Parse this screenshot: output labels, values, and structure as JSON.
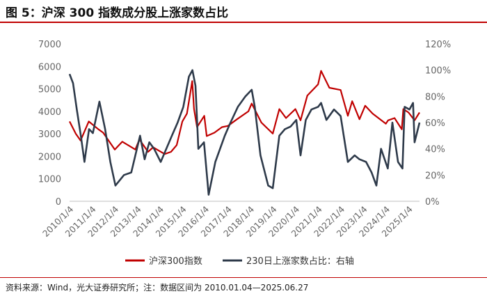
{
  "title": "图 5：沪深 300 指数成分股上涨家数占比",
  "source": "资料来源：Wind，光大证券研究所；注：数据区间为 2010.01.04—2025.06.27",
  "colors": {
    "index_line": "#c00000",
    "ratio_line": "#2e3a4a",
    "axis_text": "#666666",
    "accent": "#c00000"
  },
  "chart_data": {
    "type": "line",
    "title": "",
    "x_range": [
      "2010-01-04",
      "2025-06-27"
    ],
    "x_ticks": [
      "2010/1/4",
      "2011/1/4",
      "2012/1/4",
      "2013/1/4",
      "2014/1/4",
      "2015/1/4",
      "2016/1/4",
      "2017/1/4",
      "2018/1/4",
      "2019/1/4",
      "2020/1/4",
      "2021/1/4",
      "2022/1/4",
      "2023/1/4",
      "2024/1/4",
      "2025/1/4"
    ],
    "y_left": {
      "label": "",
      "range": [
        0,
        7000
      ],
      "ticks": [
        "0",
        "1000",
        "2000",
        "3000",
        "4000",
        "5000",
        "6000",
        "7000"
      ]
    },
    "y_right": {
      "label": "",
      "range": [
        0,
        1.2
      ],
      "ticks": [
        "0%",
        "20%",
        "40%",
        "60%",
        "80%",
        "100%",
        "120%"
      ]
    },
    "grid": false,
    "legend_position": "bottom",
    "series": [
      {
        "name": "沪深300指数",
        "axis": "left",
        "x": [
          "2010-01-04",
          "2010-04-15",
          "2010-07-01",
          "2010-11-10",
          "2011-04-15",
          "2011-07-01",
          "2012-01-05",
          "2012-05-05",
          "2012-12-01",
          "2013-02-05",
          "2013-06-25",
          "2013-09-15",
          "2014-03-20",
          "2014-07-01",
          "2014-10-01",
          "2014-12-31",
          "2015-03-15",
          "2015-06-08",
          "2015-07-08",
          "2015-08-25",
          "2015-12-20",
          "2016-01-28",
          "2016-06-01",
          "2016-10-01",
          "2017-01-04",
          "2017-06-01",
          "2017-12-01",
          "2018-01-24",
          "2018-06-30",
          "2018-12-31",
          "2019-04-15",
          "2019-08-01",
          "2019-12-31",
          "2020-03-23",
          "2020-07-10",
          "2020-12-31",
          "2021-02-18",
          "2021-07-01",
          "2021-12-31",
          "2022-04-26",
          "2022-07-05",
          "2022-10-31",
          "2023-01-31",
          "2023-06-01",
          "2023-12-31",
          "2024-02-05",
          "2024-05-20",
          "2024-09-13",
          "2024-10-08",
          "2024-12-31",
          "2025-04-08",
          "2025-06-27"
        ],
        "values": [
          3550,
          3000,
          2700,
          3550,
          3200,
          3050,
          2300,
          2650,
          2300,
          2750,
          2200,
          2400,
          2100,
          2200,
          2500,
          3550,
          3900,
          5350,
          4100,
          3300,
          3800,
          2900,
          3050,
          3300,
          3350,
          3650,
          4000,
          4350,
          3500,
          3010,
          4100,
          3700,
          4100,
          3600,
          4700,
          5200,
          5800,
          5050,
          4950,
          3800,
          4450,
          3650,
          4250,
          3900,
          3450,
          3600,
          3700,
          3200,
          4100,
          3950,
          3600,
          3950
        ]
      },
      {
        "name": "230日上涨家数占比：右轴",
        "axis": "right",
        "x": [
          "2010-01-04",
          "2010-03-01",
          "2010-05-01",
          "2010-07-05",
          "2010-09-01",
          "2010-11-15",
          "2011-01-15",
          "2011-05-01",
          "2011-08-01",
          "2011-10-25",
          "2012-01-15",
          "2012-06-01",
          "2012-09-27",
          "2013-02-15",
          "2013-05-01",
          "2013-07-15",
          "2013-10-01",
          "2014-01-15",
          "2014-04-15",
          "2014-07-15",
          "2014-10-15",
          "2015-01-15",
          "2015-04-15",
          "2015-06-12",
          "2015-07-31",
          "2015-09-15",
          "2015-12-15",
          "2016-02-29",
          "2016-06-15",
          "2016-11-15",
          "2017-02-15",
          "2017-06-15",
          "2017-10-15",
          "2018-01-24",
          "2018-03-15",
          "2018-06-15",
          "2018-10-18",
          "2018-12-31",
          "2019-04-15",
          "2019-07-15",
          "2019-10-15",
          "2020-01-15",
          "2020-03-23",
          "2020-06-15",
          "2020-09-15",
          "2020-12-31",
          "2021-02-18",
          "2021-05-15",
          "2021-09-15",
          "2021-12-31",
          "2022-04-26",
          "2022-08-15",
          "2022-10-31",
          "2023-02-15",
          "2023-05-15",
          "2023-07-31",
          "2023-10-15",
          "2024-01-31",
          "2024-04-15",
          "2024-07-15",
          "2024-09-25",
          "2024-10-30",
          "2025-01-15",
          "2025-03-15",
          "2025-04-08",
          "2025-06-27"
        ],
        "values": [
          0.97,
          0.9,
          0.7,
          0.5,
          0.3,
          0.55,
          0.52,
          0.76,
          0.55,
          0.3,
          0.12,
          0.2,
          0.22,
          0.5,
          0.32,
          0.45,
          0.4,
          0.3,
          0.4,
          0.5,
          0.6,
          0.72,
          0.95,
          1.0,
          0.88,
          0.4,
          0.45,
          0.05,
          0.3,
          0.5,
          0.6,
          0.72,
          0.8,
          0.85,
          0.72,
          0.35,
          0.12,
          0.1,
          0.5,
          0.55,
          0.57,
          0.62,
          0.35,
          0.62,
          0.7,
          0.72,
          0.75,
          0.62,
          0.7,
          0.65,
          0.3,
          0.35,
          0.32,
          0.3,
          0.22,
          0.12,
          0.4,
          0.25,
          0.6,
          0.3,
          0.25,
          0.72,
          0.7,
          0.75,
          0.45,
          0.6
        ]
      }
    ]
  }
}
